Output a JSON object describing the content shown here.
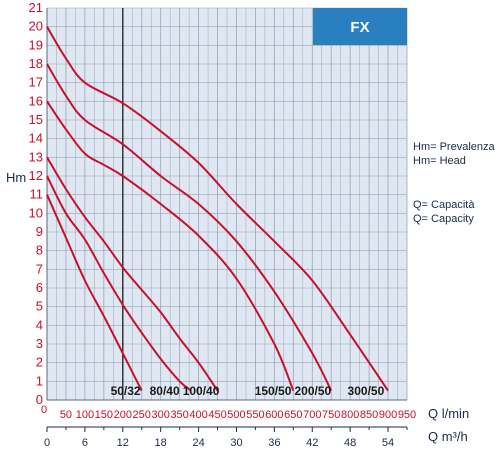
{
  "chart_data": {
    "type": "line",
    "title": "",
    "ylabel": "Hm",
    "ylim": [
      0,
      21
    ],
    "y_ticks": [
      "0",
      "1",
      "2",
      "3",
      "4",
      "5",
      "6",
      "7",
      "8",
      "9",
      "10",
      "11",
      "12",
      "13",
      "14",
      "15",
      "16",
      "17",
      "18",
      "19",
      "20",
      "21"
    ],
    "x_primary": {
      "label": "Q l/min",
      "range": [
        0,
        950
      ],
      "ticks": [
        "0",
        "50",
        "100",
        "150",
        "200",
        "250",
        "300",
        "350",
        "400",
        "450",
        "500",
        "550",
        "600",
        "650",
        "700",
        "750",
        "800",
        "850",
        "900",
        "950"
      ]
    },
    "x_secondary": {
      "label": "Q m³/h",
      "range": [
        0,
        57
      ],
      "ticks": [
        "0",
        "6",
        "12",
        "18",
        "24",
        "30",
        "36",
        "42",
        "48",
        "54"
      ]
    },
    "badge": "FX",
    "legend": [
      "Hm= Prevalenza",
      "Hm= Head",
      "Q= Capacità",
      "Q= Capacity"
    ],
    "grid": true,
    "series": [
      {
        "name": "50/32",
        "points": [
          [
            0,
            11
          ],
          [
            50,
            8.7
          ],
          [
            100,
            6.4
          ],
          [
            150,
            4.5
          ],
          [
            200,
            2.5
          ],
          [
            250,
            0.5
          ]
        ]
      },
      {
        "name": "80/40",
        "points": [
          [
            0,
            12
          ],
          [
            50,
            10
          ],
          [
            100,
            8.6
          ],
          [
            150,
            6.8
          ],
          [
            200,
            5.1
          ],
          [
            250,
            3.6
          ],
          [
            300,
            2.2
          ],
          [
            350,
            1
          ],
          [
            380,
            0.5
          ]
        ]
      },
      {
        "name": "100/40",
        "points": [
          [
            0,
            13
          ],
          [
            50,
            11.3
          ],
          [
            100,
            9.8
          ],
          [
            150,
            8.5
          ],
          [
            200,
            7.1
          ],
          [
            250,
            5.9
          ],
          [
            300,
            4.7
          ],
          [
            350,
            3.3
          ],
          [
            400,
            2
          ],
          [
            450,
            0.5
          ]
        ]
      },
      {
        "name": "150/50",
        "points": [
          [
            0,
            16
          ],
          [
            50,
            14.5
          ],
          [
            100,
            13.2
          ],
          [
            150,
            12.6
          ],
          [
            200,
            12
          ],
          [
            300,
            10.5
          ],
          [
            400,
            8.8
          ],
          [
            500,
            6.5
          ],
          [
            600,
            3
          ],
          [
            650,
            0.5
          ]
        ]
      },
      {
        "name": "200/50",
        "points": [
          [
            0,
            18
          ],
          [
            50,
            16.3
          ],
          [
            100,
            15
          ],
          [
            200,
            13.7
          ],
          [
            300,
            12
          ],
          [
            400,
            10.5
          ],
          [
            500,
            8.5
          ],
          [
            600,
            5.8
          ],
          [
            700,
            2.5
          ],
          [
            750,
            0.5
          ]
        ]
      },
      {
        "name": "300/50",
        "points": [
          [
            0,
            20
          ],
          [
            50,
            18.3
          ],
          [
            100,
            17
          ],
          [
            200,
            15.9
          ],
          [
            300,
            14.4
          ],
          [
            400,
            12.7
          ],
          [
            500,
            10.5
          ],
          [
            600,
            8.5
          ],
          [
            700,
            6.4
          ],
          [
            800,
            3.5
          ],
          [
            900,
            0.5
          ]
        ]
      }
    ],
    "curve_labels": [
      {
        "text": "50/32",
        "x": 247
      },
      {
        "text": "80/40",
        "x": 350
      },
      {
        "text": "100/40",
        "x": 455
      },
      {
        "text": "150/50",
        "x": 645
      },
      {
        "text": "200/50",
        "x": 750
      },
      {
        "text": "300/50",
        "x": 890
      }
    ],
    "colors": {
      "curve": "#c8102e",
      "grid": "#9aa5b5",
      "plot_bg": "#dfe8f2",
      "badge_bg": "#2a7fc0",
      "axis_text_red": "#c8102e",
      "axis_text_dark": "#1a2a4a"
    }
  }
}
